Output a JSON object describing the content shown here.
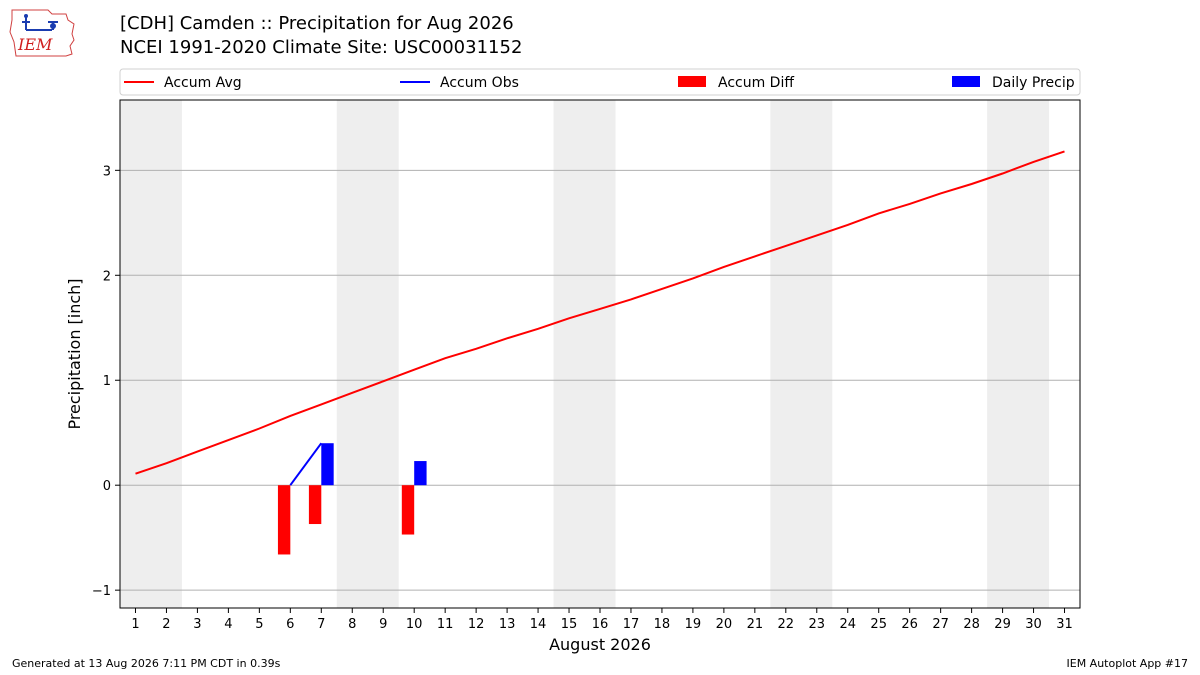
{
  "header": {
    "title_line1": "[CDH] Camden :: Precipitation for Aug 2026",
    "title_line2": "NCEI 1991-2020 Climate Site: USC00031152"
  },
  "logo": {
    "text": "IEM",
    "icon": "iem-logo-icon"
  },
  "footer": {
    "generated": "Generated at 13 Aug 2026 7:11 PM CDT in 0.39s",
    "app": "IEM Autoplot App #17"
  },
  "colors": {
    "avg": "#ff0000",
    "obs": "#0000ff",
    "diff": "#ff0000",
    "daily": "#0000ff",
    "weekend_shade": "#eeeeee",
    "grid": "#b0b0b0"
  },
  "chart_data": {
    "type": "line",
    "xlabel": "August 2026",
    "ylabel": "Precipitation [inch]",
    "x_ticks": [
      1,
      2,
      3,
      4,
      5,
      6,
      7,
      8,
      9,
      10,
      11,
      12,
      13,
      14,
      15,
      16,
      17,
      18,
      19,
      20,
      21,
      22,
      23,
      24,
      25,
      26,
      27,
      28,
      29,
      30,
      31
    ],
    "xlim": [
      0.5,
      31.5
    ],
    "ylim": [
      -1.17,
      3.67
    ],
    "y_ticks": [
      -1,
      0,
      1,
      2,
      3
    ],
    "y_tick_labels": [
      "−1",
      "0",
      "1",
      "2",
      "3"
    ],
    "grid": true,
    "legend": {
      "placement": "top",
      "entries": [
        {
          "label": "Accum Avg",
          "kind": "line",
          "color": "#ff0000"
        },
        {
          "label": "Accum Obs",
          "kind": "line",
          "color": "#0000ff"
        },
        {
          "label": "Accum Diff",
          "kind": "bar",
          "color": "#ff0000"
        },
        {
          "label": "Daily Precip",
          "kind": "bar",
          "color": "#0000ff"
        }
      ]
    },
    "weekend_days": [
      1,
      2,
      8,
      9,
      15,
      16,
      22,
      23,
      29,
      30
    ],
    "series": [
      {
        "name": "Accum Avg",
        "kind": "line",
        "days": [
          1,
          2,
          3,
          4,
          5,
          6,
          7,
          8,
          9,
          10,
          11,
          12,
          13,
          14,
          15,
          16,
          17,
          18,
          19,
          20,
          21,
          22,
          23,
          24,
          25,
          26,
          27,
          28,
          29,
          30,
          31
        ],
        "values": [
          0.11,
          0.21,
          0.32,
          0.43,
          0.54,
          0.66,
          0.77,
          0.88,
          0.99,
          1.1,
          1.21,
          1.3,
          1.4,
          1.49,
          1.59,
          1.68,
          1.77,
          1.87,
          1.97,
          2.08,
          2.18,
          2.28,
          2.38,
          2.48,
          2.59,
          2.68,
          2.78,
          2.87,
          2.97,
          3.08,
          3.18
        ]
      },
      {
        "name": "Accum Obs",
        "kind": "line",
        "days": [
          6,
          7
        ],
        "values": [
          0.0,
          0.4
        ]
      },
      {
        "name": "Accum Diff",
        "kind": "bar",
        "days": [
          6,
          7,
          10
        ],
        "values": [
          -0.66,
          -0.37,
          -0.47
        ]
      },
      {
        "name": "Daily Precip",
        "kind": "bar",
        "days": [
          7,
          10
        ],
        "values": [
          0.4,
          0.23
        ]
      }
    ]
  }
}
